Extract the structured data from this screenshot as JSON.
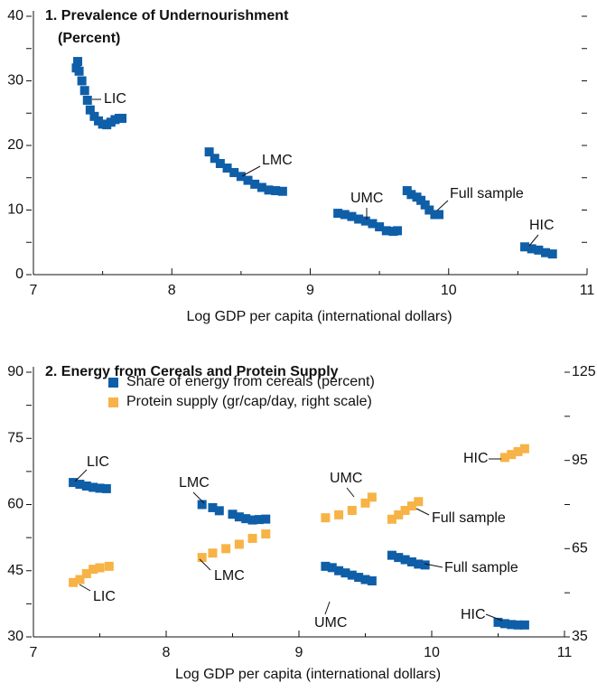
{
  "chart_data": [
    {
      "type": "scatter",
      "title": "1. Prevalence of Undernourishment",
      "subtitle": "(Percent)",
      "xlabel": "Log GDP per capita (international dollars)",
      "xlim": [
        7,
        11
      ],
      "xticks": [
        7,
        8,
        9,
        10,
        11
      ],
      "xminorticks": [
        7.5,
        8.5,
        9.5,
        10.5
      ],
      "ylim": [
        0,
        40
      ],
      "yticks": [
        0,
        10,
        20,
        30,
        40
      ],
      "yminorticks": [
        5,
        15,
        25,
        35
      ],
      "mirror_yticks": true,
      "series": [
        {
          "color": "#0f5ea8",
          "groups": [
            {
              "label": "LIC",
              "x": [
                7.31,
                7.32,
                7.33,
                7.35,
                7.37,
                7.39,
                7.41,
                7.44,
                7.47,
                7.5,
                7.53,
                7.56,
                7.59,
                7.62,
                7.64
              ],
              "values": [
                32,
                33,
                31.5,
                30,
                28.5,
                27,
                25.5,
                24.5,
                23.8,
                23.3,
                23.2,
                23.6,
                24,
                24.2,
                24.2
              ]
            },
            {
              "label": "LMC",
              "x": [
                8.27,
                8.31,
                8.35,
                8.4,
                8.45,
                8.5,
                8.55,
                8.6,
                8.65,
                8.7,
                8.75,
                8.8
              ],
              "values": [
                19,
                18,
                17.2,
                16.5,
                15.8,
                15.2,
                14.6,
                14,
                13.5,
                13.1,
                13,
                12.9
              ]
            },
            {
              "label": "UMC",
              "x": [
                9.2,
                9.25,
                9.3,
                9.35,
                9.4,
                9.45,
                9.5,
                9.55,
                9.6,
                9.63
              ],
              "values": [
                9.5,
                9.3,
                9,
                8.6,
                8.3,
                7.9,
                7.4,
                6.8,
                6.7,
                6.8
              ]
            },
            {
              "label": "Full sample",
              "x": [
                9.7,
                9.73,
                9.77,
                9.8,
                9.83,
                9.86,
                9.9,
                9.93
              ],
              "values": [
                13,
                12.4,
                12,
                11.5,
                10.8,
                10,
                9.3,
                9.3
              ]
            },
            {
              "label": "HIC",
              "x": [
                10.55,
                10.6,
                10.65,
                10.7,
                10.75
              ],
              "values": [
                4.3,
                4,
                3.8,
                3.4,
                3.2
              ]
            }
          ]
        }
      ]
    },
    {
      "type": "scatter",
      "title": "2. Energy from Cereals and Protein Supply",
      "xlabel": "Log GDP per capita (international dollars)",
      "xlim": [
        7,
        11
      ],
      "xticks": [
        7,
        8,
        9,
        10,
        11
      ],
      "xminorticks": [
        7.5,
        8.5,
        9.5,
        10.5
      ],
      "ylim": [
        30,
        90
      ],
      "yticks": [
        30,
        45,
        60,
        75,
        90
      ],
      "yminorticks": [
        37.5,
        52.5,
        67.5,
        82.5
      ],
      "y2lim": [
        35,
        125
      ],
      "y2ticks": [
        35,
        65,
        95,
        125
      ],
      "y2minorticks": [
        50,
        80,
        110
      ],
      "legend": "top-left",
      "series": [
        {
          "name": "Share of energy from cereals (percent)",
          "color": "#0f5ea8",
          "groups": [
            {
              "label": "LIC",
              "x": [
                7.3,
                7.35,
                7.4,
                7.45,
                7.5,
                7.55
              ],
              "values": [
                65,
                64.6,
                64.2,
                63.9,
                63.7,
                63.6
              ]
            },
            {
              "label": "LMC",
              "x": [
                8.27,
                8.35,
                8.4,
                8.5,
                8.55,
                8.6,
                8.65,
                8.7,
                8.75
              ],
              "values": [
                60,
                59.3,
                58.6,
                57.8,
                57.2,
                56.8,
                56.5,
                56.6,
                56.7
              ]
            },
            {
              "label": "UMC",
              "x": [
                9.2,
                9.25,
                9.3,
                9.35,
                9.4,
                9.45,
                9.5,
                9.55
              ],
              "values": [
                46,
                45.7,
                45,
                44.5,
                44,
                43.5,
                43,
                42.7
              ]
            },
            {
              "label": "Full sample",
              "x": [
                9.7,
                9.75,
                9.8,
                9.85,
                9.9,
                9.95
              ],
              "values": [
                48.5,
                48,
                47.5,
                47,
                46.5,
                46.3
              ]
            },
            {
              "label": "HIC",
              "x": [
                10.5,
                10.55,
                10.6,
                10.65,
                10.7
              ],
              "values": [
                33.3,
                33,
                32.8,
                32.7,
                32.7
              ]
            }
          ]
        },
        {
          "name": "Protein supply (gr/cap/day, right scale)",
          "color": "#f7b346",
          "axis": "y2",
          "groups": [
            {
              "label": "LIC",
              "x": [
                7.3,
                7.35,
                7.4,
                7.45,
                7.5,
                7.57
              ],
              "values": [
                53.5,
                54.5,
                56.5,
                58,
                58.5,
                59
              ]
            },
            {
              "label": "LMC",
              "x": [
                8.27,
                8.35,
                8.45,
                8.55,
                8.65,
                8.75
              ],
              "values": [
                62,
                63.5,
                65,
                66.5,
                68.5,
                70
              ]
            },
            {
              "label": "UMC",
              "x": [
                9.2,
                9.3,
                9.4,
                9.5,
                9.55
              ],
              "values": [
                75.5,
                76.5,
                78,
                80.5,
                82.5
              ]
            },
            {
              "label": "Full sample",
              "x": [
                9.7,
                9.75,
                9.8,
                9.85,
                9.9
              ],
              "values": [
                75,
                76.5,
                78,
                79.5,
                81
              ]
            },
            {
              "label": "HIC",
              "x": [
                10.55,
                10.6,
                10.65,
                10.7
              ],
              "values": [
                96,
                97,
                98,
                99
              ]
            }
          ]
        }
      ]
    }
  ]
}
